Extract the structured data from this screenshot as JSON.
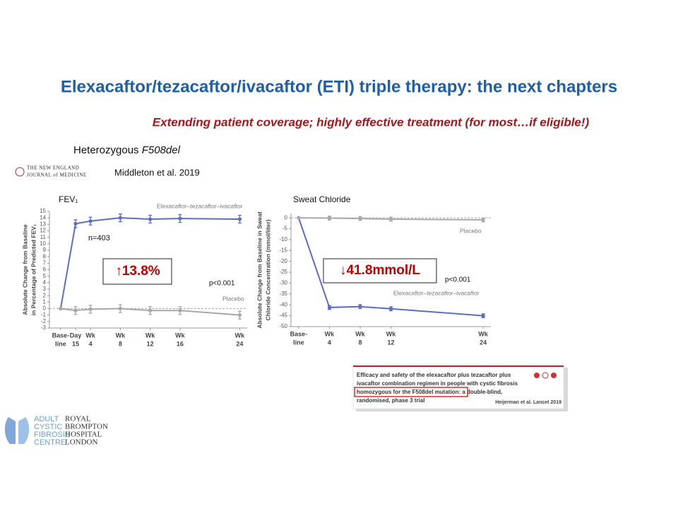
{
  "slide": {
    "title": "Elexacaftor/tezacaftor/ivacaftor (ETI) triple therapy: the next chapters",
    "subtitle": "Extending patient coverage; highly effective treatment (for most…if eligible!)",
    "population": {
      "prefix": "Heterozygous",
      "genotype": "F508del"
    },
    "journal": [
      "THE NEW ENGLAND",
      "JOURNAL of MEDICINE"
    ],
    "citation": "Middleton et al. 2019",
    "inset": {
      "lines": [
        "Efficacy and safety of the elexacaftor plus tezacaftor plus",
        "ivacaftor combination regimen in people with cystic fibrosis",
        "homozygous for the F508del mutation: a double-blind,",
        "randomised, phase 3 trial"
      ],
      "citation": "Heijerman et al. Lancet 2019"
    },
    "logo": {
      "left": [
        "ADULT",
        "CYSTIC",
        "FIBROSIS",
        "CENTRE"
      ],
      "right": [
        "ROYAL",
        "BROMPTON",
        "HOSPITAL",
        "LONDON"
      ]
    }
  },
  "chart_data": [
    {
      "type": "line",
      "title": "FEV₁",
      "ylabel": [
        "Absolute Change from Baseline",
        "in Percentage of Predicted FEV₁"
      ],
      "x": [
        0,
        2,
        4,
        8,
        12,
        16,
        24
      ],
      "xlim": [
        -1.5,
        25
      ],
      "xticks": [
        {
          "value": 0,
          "label": [
            "Base-",
            "line"
          ]
        },
        {
          "value": 2,
          "label": [
            "Day",
            "15"
          ]
        },
        {
          "value": 4,
          "label": [
            "Wk",
            "4"
          ]
        },
        {
          "value": 8,
          "label": [
            "Wk",
            "8"
          ]
        },
        {
          "value": 12,
          "label": [
            "Wk",
            "12"
          ]
        },
        {
          "value": 16,
          "label": [
            "Wk",
            "16"
          ]
        },
        {
          "value": 24,
          "label": [
            "Wk",
            "24"
          ]
        }
      ],
      "ylim": [
        -3,
        15
      ],
      "yticks": [
        -3,
        -2,
        -1,
        0,
        1,
        2,
        3,
        4,
        5,
        6,
        7,
        8,
        9,
        10,
        11,
        12,
        13,
        14,
        15
      ],
      "series": [
        {
          "name": "Elexacaftor–tezacaftor–ivacaftor",
          "color": "#5b6ec0",
          "values": [
            0,
            13.1,
            13.5,
            14.0,
            13.8,
            13.9,
            13.8
          ],
          "errors": [
            null,
            0.6,
            0.6,
            0.6,
            0.6,
            0.6,
            0.6
          ]
        },
        {
          "name": "Placebo",
          "color": "#a8a8a8",
          "values": [
            0,
            -0.3,
            -0.1,
            0.0,
            -0.3,
            -0.3,
            -1.0
          ],
          "errors": [
            null,
            0.6,
            0.6,
            0.6,
            0.6,
            0.6,
            0.6
          ]
        }
      ],
      "annotations": [
        "n=403",
        "↑13.8%",
        "p<0.001"
      ]
    },
    {
      "type": "line",
      "title": "Sweat Chloride",
      "ylabel": [
        "Absolute Change from Baseline in Sweat",
        "Chloride Concentration (mmol/liter)"
      ],
      "x": [
        0,
        4,
        8,
        12,
        24
      ],
      "xlim": [
        -1,
        25
      ],
      "xticks": [
        {
          "value": 0,
          "label": [
            "Base-",
            "line"
          ]
        },
        {
          "value": 4,
          "label": [
            "Wk",
            "4"
          ]
        },
        {
          "value": 8,
          "label": [
            "Wk",
            "8"
          ]
        },
        {
          "value": 12,
          "label": [
            "Wk",
            "12"
          ]
        },
        {
          "value": 24,
          "label": [
            "Wk",
            "24"
          ]
        }
      ],
      "ylim": [
        -50,
        2
      ],
      "yticks": [
        -50,
        -45,
        -40,
        -35,
        -30,
        -25,
        -20,
        -15,
        -10,
        -5,
        0
      ],
      "series": [
        {
          "name": "Elexacaftor–tezacaftor–ivacaftor",
          "color": "#5b6ec0",
          "values": [
            0,
            -41.2,
            -40.8,
            -41.8,
            -45.0
          ],
          "errors": [
            null,
            0.9,
            0.9,
            0.9,
            0.9
          ]
        },
        {
          "name": "Placebo",
          "color": "#a8a8a8",
          "values": [
            0,
            -0.1,
            -0.3,
            -0.6,
            -0.9
          ],
          "errors": [
            null,
            0.9,
            0.9,
            0.9,
            0.9
          ]
        }
      ],
      "annotations": [
        "↓41.8mmol/L",
        "p<0.001"
      ]
    }
  ]
}
